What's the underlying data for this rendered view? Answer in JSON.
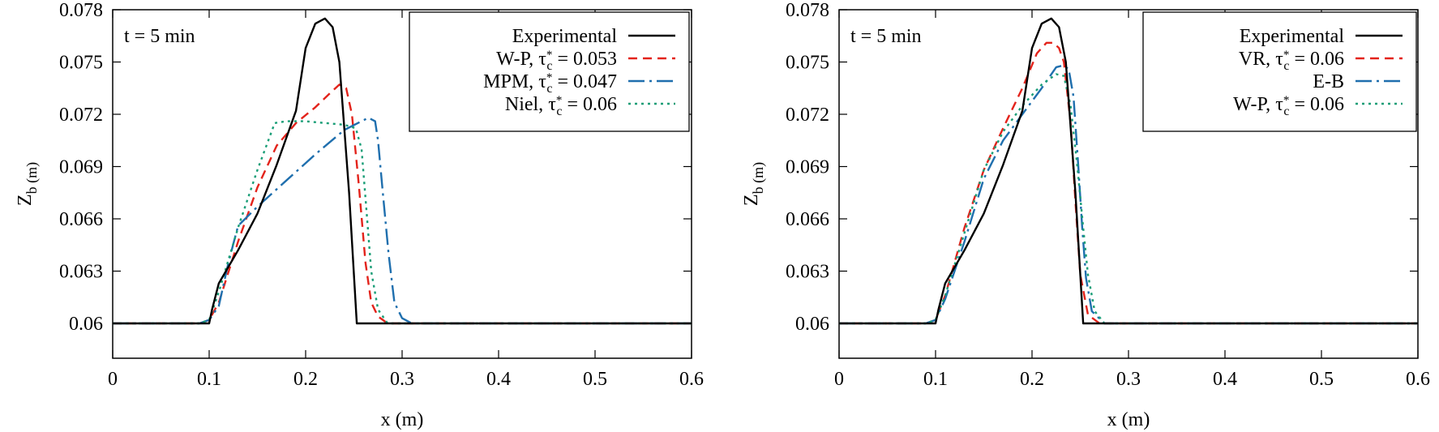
{
  "chart_data": [
    {
      "type": "line",
      "annotation": "t = 5 min",
      "xlabel": "x (m)",
      "ylabel": "Z_b (m)",
      "xlim": [
        0,
        0.6
      ],
      "ylim": [
        0.058,
        0.078
      ],
      "xticks": [
        "0",
        "0.1",
        "0.2",
        "0.3",
        "0.4",
        "0.5",
        "0.6"
      ],
      "yticks": [
        "0.06",
        "0.063",
        "0.066",
        "0.069",
        "0.072",
        "0.075",
        "0.078"
      ],
      "grid": false,
      "legend_position": "top-right",
      "series": [
        {
          "name": "Experimental",
          "label_main": "Experimental",
          "label_tau": "",
          "color": "#000000",
          "style": "solid",
          "x": [
            0,
            0.1,
            0.103,
            0.11,
            0.13,
            0.15,
            0.17,
            0.19,
            0.2,
            0.21,
            0.22,
            0.228,
            0.235,
            0.245,
            0.253,
            0.26,
            0.6
          ],
          "y": [
            0.06,
            0.06,
            0.0608,
            0.0623,
            0.0642,
            0.0663,
            0.0691,
            0.0722,
            0.0758,
            0.0772,
            0.0775,
            0.077,
            0.075,
            0.0675,
            0.06,
            0.06,
            0.06
          ]
        },
        {
          "name": "W-P, τc* = 0.053",
          "label_main": "W-P, ",
          "label_tau": "0.053",
          "color": "#e3231b",
          "style": "dashed",
          "x": [
            0,
            0.09,
            0.1,
            0.11,
            0.13,
            0.15,
            0.17,
            0.19,
            0.21,
            0.225,
            0.235,
            0.242,
            0.248,
            0.255,
            0.262,
            0.268,
            0.275,
            0.285,
            0.3,
            0.6
          ],
          "y": [
            0.06,
            0.06,
            0.0602,
            0.0612,
            0.0647,
            0.0678,
            0.0702,
            0.0715,
            0.0724,
            0.0732,
            0.0737,
            0.0735,
            0.072,
            0.068,
            0.0635,
            0.0612,
            0.0604,
            0.06,
            0.06,
            0.06
          ]
        },
        {
          "name": "MPM, τc* = 0.047",
          "label_main": "MPM, ",
          "label_tau": "0.047",
          "color": "#1f6fae",
          "style": "dashdot",
          "x": [
            0,
            0.09,
            0.1,
            0.11,
            0.12,
            0.13,
            0.15,
            0.18,
            0.21,
            0.24,
            0.265,
            0.272,
            0.275,
            0.28,
            0.286,
            0.292,
            0.3,
            0.31,
            0.6
          ],
          "y": [
            0.06,
            0.06,
            0.0602,
            0.061,
            0.0635,
            0.0656,
            0.0667,
            0.0682,
            0.0697,
            0.0711,
            0.0718,
            0.0716,
            0.0705,
            0.0675,
            0.064,
            0.0612,
            0.0603,
            0.06,
            0.06
          ]
        },
        {
          "name": "Niel, τc* = 0.06",
          "label_main": "Niel, ",
          "label_tau": "0.06",
          "color": "#1a9e77",
          "style": "dotted",
          "x": [
            0,
            0.09,
            0.1,
            0.11,
            0.13,
            0.15,
            0.168,
            0.18,
            0.2,
            0.22,
            0.24,
            0.252,
            0.258,
            0.263,
            0.268,
            0.275,
            0.285,
            0.6
          ],
          "y": [
            0.06,
            0.06,
            0.0602,
            0.0618,
            0.0655,
            0.0688,
            0.0715,
            0.0716,
            0.0716,
            0.0715,
            0.0714,
            0.0712,
            0.07,
            0.0665,
            0.063,
            0.0608,
            0.06,
            0.06
          ]
        }
      ]
    },
    {
      "type": "line",
      "annotation": "t = 5 min",
      "xlabel": "x (m)",
      "ylabel": "Z_b (m)",
      "xlim": [
        0,
        0.6
      ],
      "ylim": [
        0.058,
        0.078
      ],
      "xticks": [
        "0",
        "0.1",
        "0.2",
        "0.3",
        "0.4",
        "0.5",
        "0.6"
      ],
      "yticks": [
        "0.06",
        "0.063",
        "0.066",
        "0.069",
        "0.072",
        "0.075",
        "0.078"
      ],
      "grid": false,
      "legend_position": "top-right",
      "series": [
        {
          "name": "Experimental",
          "label_main": "Experimental",
          "label_tau": "",
          "color": "#000000",
          "style": "solid",
          "x": [
            0,
            0.1,
            0.103,
            0.11,
            0.13,
            0.15,
            0.17,
            0.19,
            0.2,
            0.21,
            0.22,
            0.228,
            0.235,
            0.245,
            0.253,
            0.26,
            0.6
          ],
          "y": [
            0.06,
            0.06,
            0.0608,
            0.0623,
            0.0642,
            0.0663,
            0.0691,
            0.0722,
            0.0758,
            0.0772,
            0.0775,
            0.077,
            0.075,
            0.0675,
            0.06,
            0.06,
            0.06
          ]
        },
        {
          "name": "VR, τc* = 0.06",
          "label_main": "VR, ",
          "label_tau": "0.06",
          "color": "#e3231b",
          "style": "dashed",
          "x": [
            0,
            0.09,
            0.1,
            0.11,
            0.13,
            0.15,
            0.17,
            0.19,
            0.205,
            0.215,
            0.222,
            0.228,
            0.233,
            0.24,
            0.245,
            0.25,
            0.258,
            0.27,
            0.6
          ],
          "y": [
            0.06,
            0.06,
            0.0602,
            0.0616,
            0.0655,
            0.0688,
            0.0712,
            0.0735,
            0.0755,
            0.0761,
            0.0761,
            0.0758,
            0.075,
            0.0715,
            0.067,
            0.0628,
            0.0605,
            0.06,
            0.06
          ]
        },
        {
          "name": "E-B",
          "label_main": "E-B",
          "label_tau": "",
          "color": "#1f6fae",
          "style": "dashdot",
          "x": [
            0,
            0.09,
            0.1,
            0.11,
            0.13,
            0.15,
            0.17,
            0.19,
            0.21,
            0.225,
            0.232,
            0.238,
            0.243,
            0.248,
            0.252,
            0.256,
            0.262,
            0.275,
            0.6
          ],
          "y": [
            0.06,
            0.06,
            0.0602,
            0.0614,
            0.0647,
            0.0683,
            0.0705,
            0.072,
            0.0735,
            0.0747,
            0.0748,
            0.0746,
            0.073,
            0.069,
            0.0655,
            0.0626,
            0.0607,
            0.06,
            0.06
          ]
        },
        {
          "name": "W-P, τc* = 0.06",
          "label_main": "W-P, ",
          "label_tau": "0.06",
          "color": "#1a9e77",
          "style": "dotted",
          "x": [
            0,
            0.09,
            0.1,
            0.11,
            0.13,
            0.15,
            0.17,
            0.19,
            0.21,
            0.225,
            0.233,
            0.24,
            0.247,
            0.253,
            0.258,
            0.265,
            0.275,
            0.6
          ],
          "y": [
            0.06,
            0.06,
            0.0602,
            0.0616,
            0.0652,
            0.0688,
            0.071,
            0.0725,
            0.0737,
            0.0743,
            0.0742,
            0.0725,
            0.069,
            0.0655,
            0.0628,
            0.0607,
            0.06,
            0.06
          ]
        }
      ]
    }
  ]
}
